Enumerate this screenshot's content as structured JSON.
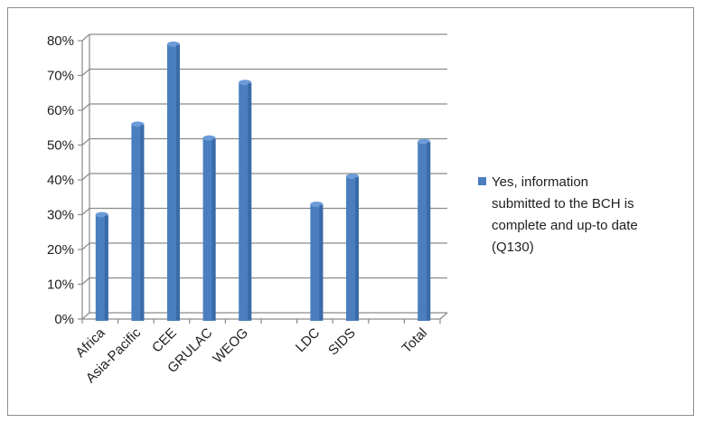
{
  "chart_data": {
    "type": "bar",
    "categories": [
      "Africa",
      "Asia-Pacific",
      "CEE",
      "GRULAC",
      "WEOG",
      "",
      "LDC",
      "SIDS",
      "",
      "Total"
    ],
    "series": [
      {
        "name": "Yes, information submitted to the BCH is complete and up-to date (Q130)",
        "values": [
          30,
          56,
          79,
          52,
          68,
          null,
          33,
          41,
          null,
          51
        ],
        "color": "#4a7ebf"
      }
    ],
    "title": "",
    "xlabel": "",
    "ylabel": "",
    "ylim": [
      0,
      80
    ],
    "yticks": [
      "0%",
      "10%",
      "20%",
      "30%",
      "40%",
      "50%",
      "60%",
      "70%",
      "80%"
    ],
    "grid": true,
    "legend": {
      "position": "right",
      "lines": [
        "Yes, information",
        "submitted to the BCH is",
        "complete and up-to date",
        "(Q130)"
      ]
    }
  }
}
